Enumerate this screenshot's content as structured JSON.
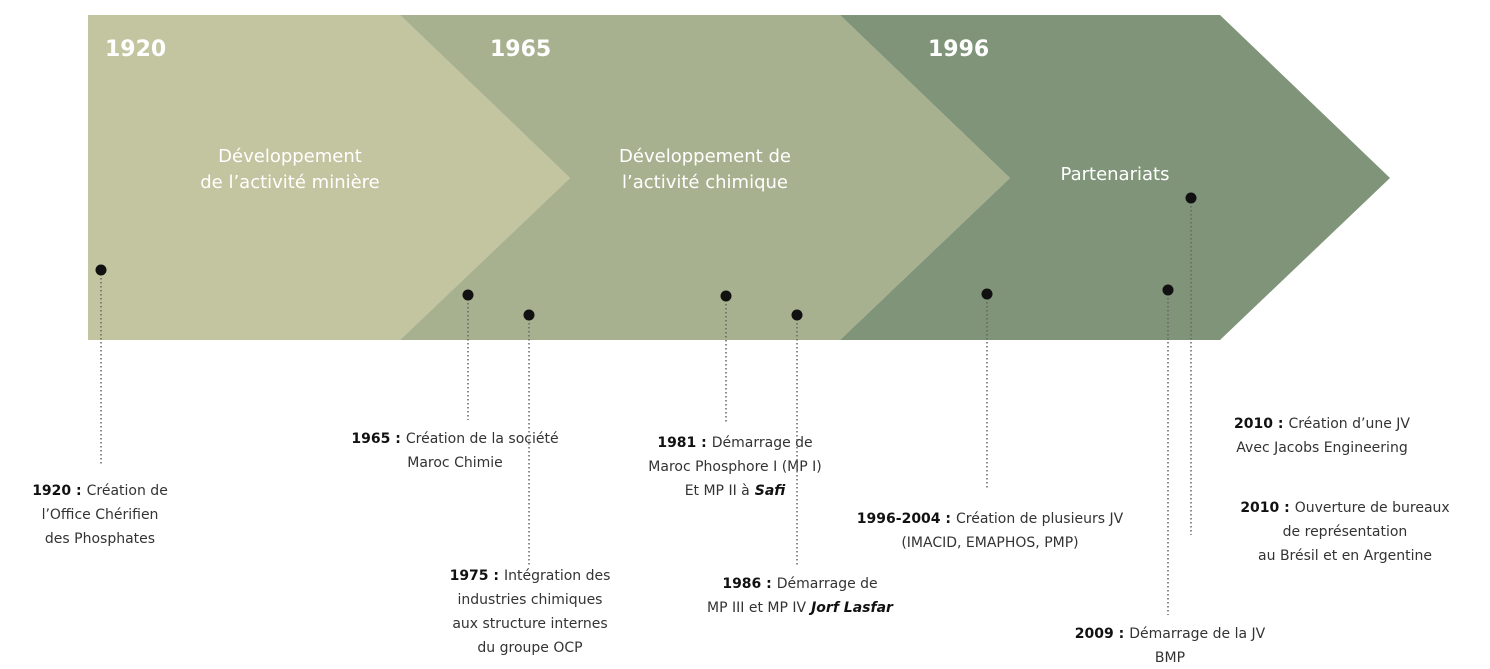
{
  "phases": [
    {
      "year": "1920",
      "lines": [
        "Développement",
        "de l’activité minière"
      ]
    },
    {
      "year": "1965",
      "lines": [
        "Développement de",
        "l’activité chimique"
      ]
    },
    {
      "year": "1996",
      "lines": [
        "Partenariats"
      ]
    }
  ],
  "events": [
    {
      "date": "1920 :",
      "lines": [
        "Création de",
        "l’Office Chérifien",
        "des Phosphates"
      ]
    },
    {
      "date": "1965 :",
      "lines": [
        "Création de la société",
        "Maroc Chimie"
      ]
    },
    {
      "date": "1975 :",
      "lines": [
        "Intégration des",
        "industries chimiques",
        "aux structure internes",
        "du groupe OCP"
      ]
    },
    {
      "date": "1981 :",
      "lines": [
        "Démarrage de",
        "Maroc Phosphore I (MP I)",
        "Et MP II à"
      ],
      "place": "Safi"
    },
    {
      "date": "1986 :",
      "lines": [
        "Démarrage de",
        "MP III et MP IV"
      ],
      "place": "Jorf Lasfar"
    },
    {
      "date": "1996-2004 :",
      "lines": [
        "Création de plusieurs JV",
        "(IMACID, EMAPHOS, PMP)"
      ]
    },
    {
      "date": "2009 :",
      "lines": [
        "Démarrage de la JV",
        "BMP"
      ]
    },
    {
      "date": "2010 :",
      "lines": [
        "Création d’une JV",
        "Avec Jacobs Engineering"
      ]
    },
    {
      "date": "2010 :",
      "lines": [
        "Ouverture de bureaux",
        "de représentation",
        "au Brésil et en Argentine"
      ]
    }
  ]
}
